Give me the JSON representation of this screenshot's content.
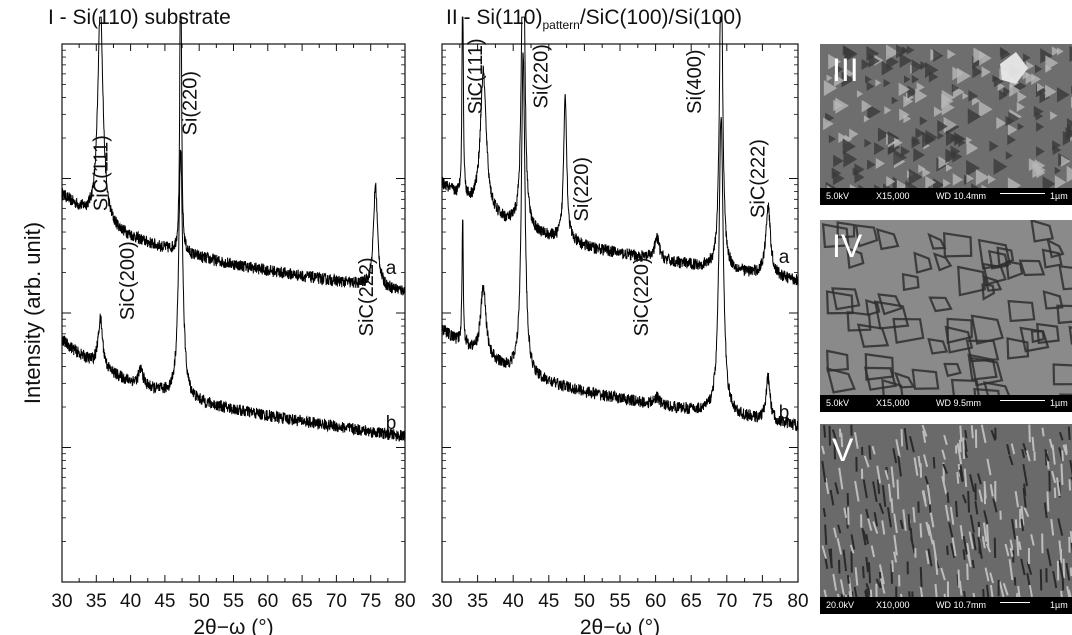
{
  "panels": {
    "p1": {
      "title": "I - Si(110) substrate"
    },
    "p2": {
      "title_pre": "II -  Si(110)",
      "title_sub": "pattern",
      "title_post": "/SiC(100)/Si(100)"
    }
  },
  "sem": [
    {
      "label": "III",
      "kv": "5.0kV",
      "mag": "X15,000",
      "wd": "WD 10.4mm",
      "scale": "1µm"
    },
    {
      "label": "IV",
      "kv": "5.0kV",
      "mag": "X15,000",
      "wd": "WD 9.5mm",
      "scale": "1µm"
    },
    {
      "label": "V",
      "kv": "20.0kV",
      "mag": "X10,000",
      "wd": "WD 10.7mm",
      "scale": "1µm"
    }
  ],
  "chart_data": [
    {
      "type": "line",
      "title": "I - Si(110) substrate",
      "xlabel": "2θ−ω (°)",
      "ylabel": "Intensity (arb. unit)",
      "xlim": [
        30,
        80
      ],
      "x_ticks": [
        "30",
        "35",
        "40",
        "45",
        "50",
        "55",
        "60",
        "65",
        "70",
        "75",
        "80"
      ],
      "y_scale": "log",
      "ylim": [
        0,
        10
      ],
      "series": [
        {
          "name": "a",
          "baseline": 6.3,
          "peaks": [
            {
              "x": 35.6,
              "h": 4.1,
              "w": 0.45
            },
            {
              "x": 47.3,
              "h": 7.0,
              "w": 0.12
            },
            {
              "x": 75.7,
              "h": 1.9,
              "w": 0.35
            }
          ]
        },
        {
          "name": "b",
          "baseline": 3.6,
          "peaks": [
            {
              "x": 35.6,
              "h": 0.9,
              "w": 0.4
            },
            {
              "x": 41.5,
              "h": 0.3,
              "w": 0.4
            },
            {
              "x": 47.3,
              "h": 4.6,
              "w": 0.35
            }
          ]
        }
      ],
      "annotations": [
        {
          "text": "SiC(111)",
          "x": 36.6,
          "y": 7.6
        },
        {
          "text": "Si(220)",
          "x": 49.6,
          "y": 8.9
        },
        {
          "text": "SiC(200)",
          "x": 40.5,
          "y": 5.6
        },
        {
          "text": "SiC(222)",
          "x": 75.3,
          "y": 5.3
        }
      ]
    },
    {
      "type": "line",
      "title": "II -  Si(110)pattern/SiC(100)/Si(100)",
      "xlabel": "2θ−ω (°)",
      "ylabel": "",
      "xlim": [
        30,
        80
      ],
      "x_ticks": [
        "30",
        "35",
        "40",
        "45",
        "50",
        "55",
        "60",
        "65",
        "70",
        "75",
        "80"
      ],
      "y_scale": "log",
      "ylim": [
        0,
        10
      ],
      "series": [
        {
          "name": "a",
          "baseline": 6.5,
          "peaks": [
            {
              "x": 32.9,
              "h": 4.4,
              "w": 0.1
            },
            {
              "x": 35.8,
              "h": 2.6,
              "w": 0.5
            },
            {
              "x": 41.4,
              "h": 6.4,
              "w": 0.25
            },
            {
              "x": 47.3,
              "h": 2.8,
              "w": 0.25
            },
            {
              "x": 60.2,
              "h": 0.4,
              "w": 0.4
            },
            {
              "x": 69.2,
              "h": 6.2,
              "w": 0.25
            },
            {
              "x": 75.8,
              "h": 1.3,
              "w": 0.4
            }
          ]
        },
        {
          "name": "b",
          "baseline": 3.8,
          "peaks": [
            {
              "x": 32.9,
              "h": 2.4,
              "w": 0.1
            },
            {
              "x": 35.8,
              "h": 1.3,
              "w": 0.45
            },
            {
              "x": 41.4,
              "h": 6.0,
              "w": 0.3
            },
            {
              "x": 60.2,
              "h": 0.15,
              "w": 0.4
            },
            {
              "x": 69.2,
              "h": 5.6,
              "w": 0.35
            },
            {
              "x": 75.8,
              "h": 0.8,
              "w": 0.35
            }
          ]
        }
      ],
      "annotations": [
        {
          "text": "SiC(111)",
          "x": 35.6,
          "y": 9.4
        },
        {
          "text": "Si(220)",
          "x": 44.8,
          "y": 9.4
        },
        {
          "text": "Si(220)",
          "x": 50.5,
          "y": 7.3
        },
        {
          "text": "SiC(220)",
          "x": 58.9,
          "y": 5.3
        },
        {
          "text": "Si(400)",
          "x": 66.4,
          "y": 9.3
        },
        {
          "text": "SiC(222)",
          "x": 75.3,
          "y": 7.5
        }
      ]
    }
  ]
}
